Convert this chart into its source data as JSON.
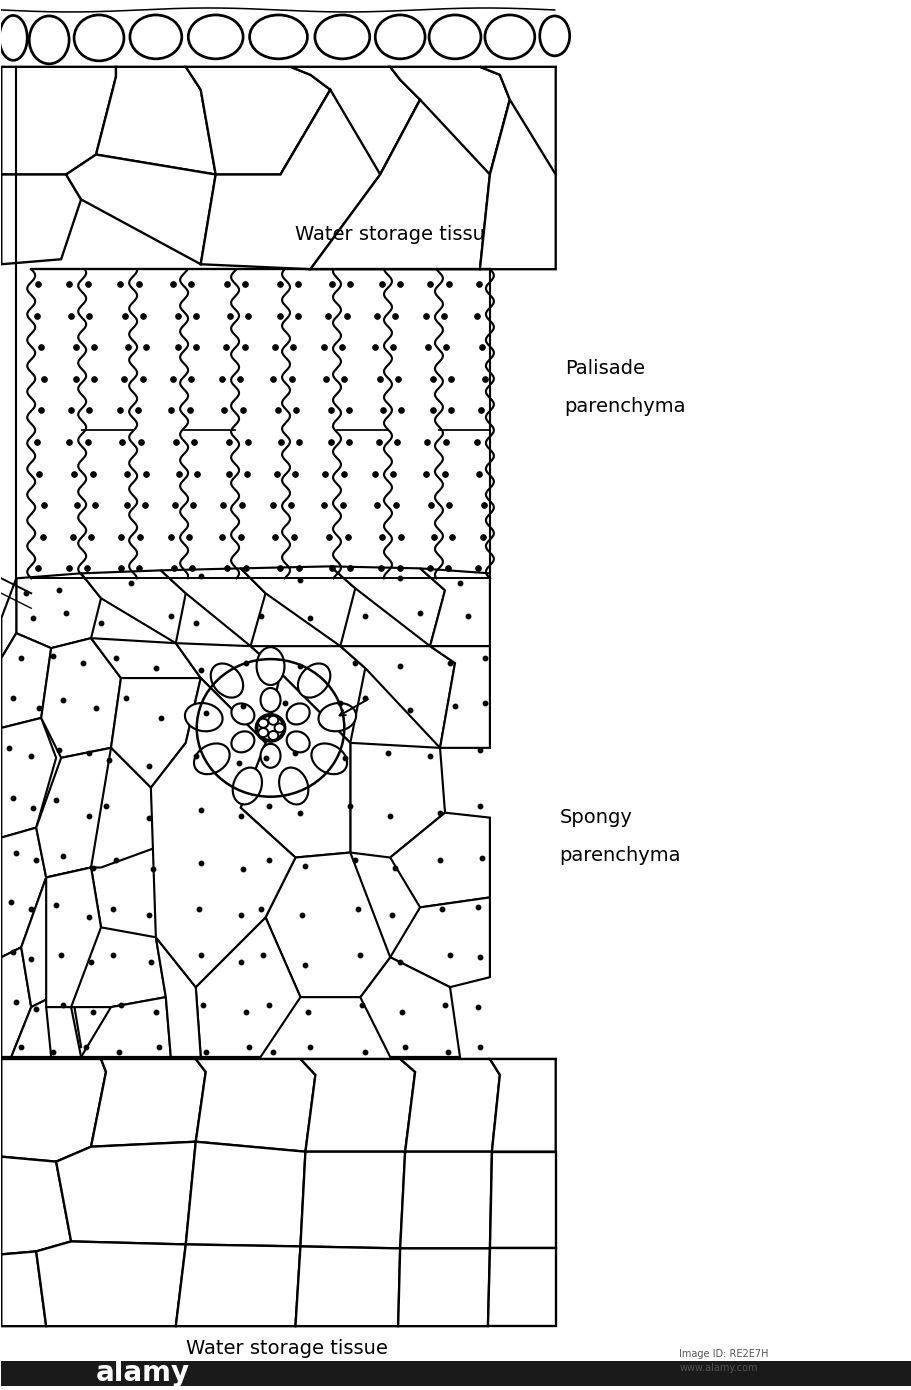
{
  "background_color": "#ffffff",
  "label_water_storage_top": "Water storage tissu",
  "label_palisade_1": "Palisade",
  "label_palisade_2": "parenchyma",
  "label_spongy_1": "Spongy",
  "label_spongy_2": "parenchyma",
  "label_water_storage_bottom": "Water storage tissue",
  "label_font": "Courier New",
  "label_fontsize": 13,
  "figure_width": 9.12,
  "figure_height": 13.9,
  "line_color": "#000000",
  "line_width": 1.4
}
